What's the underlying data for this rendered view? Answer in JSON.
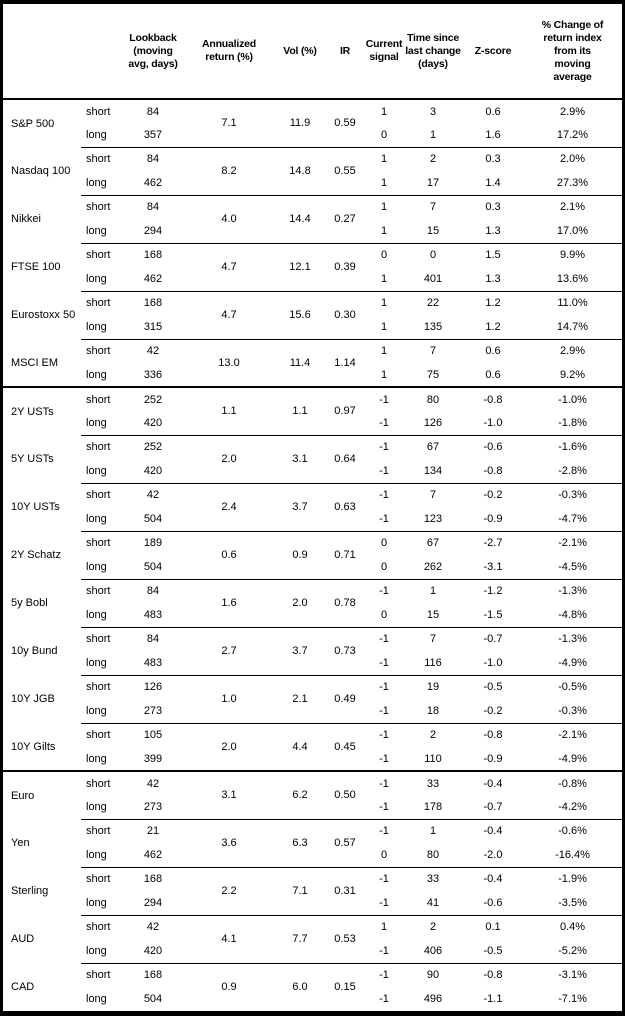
{
  "colors": {
    "background": "#ffffff",
    "text": "#000000",
    "border": "#000000"
  },
  "table": {
    "columns": [
      {
        "id": "asset",
        "label": ""
      },
      {
        "id": "leg",
        "label": ""
      },
      {
        "id": "lookback",
        "label": "Lookback\n(moving\navg, days)"
      },
      {
        "id": "annualized-return",
        "label": "Annualized\nreturn (%)"
      },
      {
        "id": "vol",
        "label": "Vol (%)"
      },
      {
        "id": "ir",
        "label": "IR"
      },
      {
        "id": "current-signal",
        "label": "Current\nsignal"
      },
      {
        "id": "time-since-last-change",
        "label": "Time since\nlast change\n(days)"
      },
      {
        "id": "zscore",
        "label": "Z-score"
      },
      {
        "id": "pct-change",
        "label": "% Change of\nreturn index\nfrom its\nmoving\naverage"
      }
    ],
    "sections": [
      {
        "name": "equity-indices",
        "assets": [
          {
            "name": "S&P 500",
            "annualized_return": "7.1",
            "vol": "11.9",
            "ir": "0.59",
            "rows": [
              {
                "leg": "short",
                "lookback": "84",
                "signal": "1",
                "time_since": "3",
                "zscore": "0.6",
                "pct_change": "2.9%"
              },
              {
                "leg": "long",
                "lookback": "357",
                "signal": "0",
                "time_since": "1",
                "zscore": "1.6",
                "pct_change": "17.2%"
              }
            ]
          },
          {
            "name": "Nasdaq 100",
            "annualized_return": "8.2",
            "vol": "14.8",
            "ir": "0.55",
            "rows": [
              {
                "leg": "short",
                "lookback": "84",
                "signal": "1",
                "time_since": "2",
                "zscore": "0.3",
                "pct_change": "2.0%"
              },
              {
                "leg": "long",
                "lookback": "462",
                "signal": "1",
                "time_since": "17",
                "zscore": "1.4",
                "pct_change": "27.3%"
              }
            ]
          },
          {
            "name": "Nikkei",
            "annualized_return": "4.0",
            "vol": "14.4",
            "ir": "0.27",
            "rows": [
              {
                "leg": "short",
                "lookback": "84",
                "signal": "1",
                "time_since": "7",
                "zscore": "0.3",
                "pct_change": "2.1%"
              },
              {
                "leg": "long",
                "lookback": "294",
                "signal": "1",
                "time_since": "15",
                "zscore": "1.3",
                "pct_change": "17.0%"
              }
            ]
          },
          {
            "name": "FTSE 100",
            "annualized_return": "4.7",
            "vol": "12.1",
            "ir": "0.39",
            "rows": [
              {
                "leg": "short",
                "lookback": "168",
                "signal": "0",
                "time_since": "0",
                "zscore": "1.5",
                "pct_change": "9.9%"
              },
              {
                "leg": "long",
                "lookback": "462",
                "signal": "1",
                "time_since": "401",
                "zscore": "1.3",
                "pct_change": "13.6%"
              }
            ]
          },
          {
            "name": "Eurostoxx 50",
            "annualized_return": "4.7",
            "vol": "15.6",
            "ir": "0.30",
            "rows": [
              {
                "leg": "short",
                "lookback": "168",
                "signal": "1",
                "time_since": "22",
                "zscore": "1.2",
                "pct_change": "11.0%"
              },
              {
                "leg": "long",
                "lookback": "315",
                "signal": "1",
                "time_since": "135",
                "zscore": "1.2",
                "pct_change": "14.7%"
              }
            ]
          },
          {
            "name": "MSCI EM",
            "annualized_return": "13.0",
            "vol": "11.4",
            "ir": "1.14",
            "rows": [
              {
                "leg": "short",
                "lookback": "42",
                "signal": "1",
                "time_since": "7",
                "zscore": "0.6",
                "pct_change": "2.9%"
              },
              {
                "leg": "long",
                "lookback": "336",
                "signal": "1",
                "time_since": "75",
                "zscore": "0.6",
                "pct_change": "9.2%"
              }
            ]
          }
        ]
      },
      {
        "name": "government-bonds",
        "assets": [
          {
            "name": "2Y USTs",
            "annualized_return": "1.1",
            "vol": "1.1",
            "ir": "0.97",
            "rows": [
              {
                "leg": "short",
                "lookback": "252",
                "signal": "-1",
                "time_since": "80",
                "zscore": "-0.8",
                "pct_change": "-1.0%"
              },
              {
                "leg": "long",
                "lookback": "420",
                "signal": "-1",
                "time_since": "126",
                "zscore": "-1.0",
                "pct_change": "-1.8%"
              }
            ]
          },
          {
            "name": "5Y USTs",
            "annualized_return": "2.0",
            "vol": "3.1",
            "ir": "0.64",
            "rows": [
              {
                "leg": "short",
                "lookback": "252",
                "signal": "-1",
                "time_since": "67",
                "zscore": "-0.6",
                "pct_change": "-1.6%"
              },
              {
                "leg": "long",
                "lookback": "420",
                "signal": "-1",
                "time_since": "134",
                "zscore": "-0.8",
                "pct_change": "-2.8%"
              }
            ]
          },
          {
            "name": "10Y USTs",
            "annualized_return": "2.4",
            "vol": "3.7",
            "ir": "0.63",
            "rows": [
              {
                "leg": "short",
                "lookback": "42",
                "signal": "-1",
                "time_since": "7",
                "zscore": "-0.2",
                "pct_change": "-0.3%"
              },
              {
                "leg": "long",
                "lookback": "504",
                "signal": "-1",
                "time_since": "123",
                "zscore": "-0.9",
                "pct_change": "-4.7%"
              }
            ]
          },
          {
            "name": "2Y Schatz",
            "annualized_return": "0.6",
            "vol": "0.9",
            "ir": "0.71",
            "rows": [
              {
                "leg": "short",
                "lookback": "189",
                "signal": "0",
                "time_since": "67",
                "zscore": "-2.7",
                "pct_change": "-2.1%"
              },
              {
                "leg": "long",
                "lookback": "504",
                "signal": "0",
                "time_since": "262",
                "zscore": "-3.1",
                "pct_change": "-4.5%"
              }
            ]
          },
          {
            "name": "5y Bobl",
            "annualized_return": "1.6",
            "vol": "2.0",
            "ir": "0.78",
            "rows": [
              {
                "leg": "short",
                "lookback": "84",
                "signal": "-1",
                "time_since": "1",
                "zscore": "-1.2",
                "pct_change": "-1.3%"
              },
              {
                "leg": "long",
                "lookback": "483",
                "signal": "0",
                "time_since": "15",
                "zscore": "-1.5",
                "pct_change": "-4.8%"
              }
            ]
          },
          {
            "name": "10y Bund",
            "annualized_return": "2.7",
            "vol": "3.7",
            "ir": "0.73",
            "rows": [
              {
                "leg": "short",
                "lookback": "84",
                "signal": "-1",
                "time_since": "7",
                "zscore": "-0.7",
                "pct_change": "-1.3%"
              },
              {
                "leg": "long",
                "lookback": "483",
                "signal": "-1",
                "time_since": "116",
                "zscore": "-1.0",
                "pct_change": "-4.9%"
              }
            ]
          },
          {
            "name": "10Y JGB",
            "annualized_return": "1.0",
            "vol": "2.1",
            "ir": "0.49",
            "rows": [
              {
                "leg": "short",
                "lookback": "126",
                "signal": "-1",
                "time_since": "19",
                "zscore": "-0.5",
                "pct_change": "-0.5%"
              },
              {
                "leg": "long",
                "lookback": "273",
                "signal": "-1",
                "time_since": "18",
                "zscore": "-0.2",
                "pct_change": "-0.3%"
              }
            ]
          },
          {
            "name": "10Y Gilts",
            "annualized_return": "2.0",
            "vol": "4.4",
            "ir": "0.45",
            "rows": [
              {
                "leg": "short",
                "lookback": "105",
                "signal": "-1",
                "time_since": "2",
                "zscore": "-0.8",
                "pct_change": "-2.1%"
              },
              {
                "leg": "long",
                "lookback": "399",
                "signal": "-1",
                "time_since": "110",
                "zscore": "-0.9",
                "pct_change": "-4.9%"
              }
            ]
          }
        ]
      },
      {
        "name": "currencies",
        "assets": [
          {
            "name": "Euro",
            "annualized_return": "3.1",
            "vol": "6.2",
            "ir": "0.50",
            "rows": [
              {
                "leg": "short",
                "lookback": "42",
                "signal": "-1",
                "time_since": "33",
                "zscore": "-0.4",
                "pct_change": "-0.8%"
              },
              {
                "leg": "long",
                "lookback": "273",
                "signal": "-1",
                "time_since": "178",
                "zscore": "-0.7",
                "pct_change": "-4.2%"
              }
            ]
          },
          {
            "name": "Yen",
            "annualized_return": "3.6",
            "vol": "6.3",
            "ir": "0.57",
            "rows": [
              {
                "leg": "short",
                "lookback": "21",
                "signal": "-1",
                "time_since": "1",
                "zscore": "-0.4",
                "pct_change": "-0.6%"
              },
              {
                "leg": "long",
                "lookback": "462",
                "signal": "0",
                "time_since": "80",
                "zscore": "-2.0",
                "pct_change": "-16.4%"
              }
            ]
          },
          {
            "name": "Sterling",
            "annualized_return": "2.2",
            "vol": "7.1",
            "ir": "0.31",
            "rows": [
              {
                "leg": "short",
                "lookback": "168",
                "signal": "-1",
                "time_since": "33",
                "zscore": "-0.4",
                "pct_change": "-1.9%"
              },
              {
                "leg": "long",
                "lookback": "294",
                "signal": "-1",
                "time_since": "41",
                "zscore": "-0.6",
                "pct_change": "-3.5%"
              }
            ]
          },
          {
            "name": "AUD",
            "annualized_return": "4.1",
            "vol": "7.7",
            "ir": "0.53",
            "rows": [
              {
                "leg": "short",
                "lookback": "42",
                "signal": "1",
                "time_since": "2",
                "zscore": "0.1",
                "pct_change": "0.4%"
              },
              {
                "leg": "long",
                "lookback": "420",
                "signal": "-1",
                "time_since": "406",
                "zscore": "-0.5",
                "pct_change": "-5.2%"
              }
            ]
          },
          {
            "name": "CAD",
            "annualized_return": "0.9",
            "vol": "6.0",
            "ir": "0.15",
            "rows": [
              {
                "leg": "short",
                "lookback": "168",
                "signal": "-1",
                "time_since": "90",
                "zscore": "-0.8",
                "pct_change": "-3.1%"
              },
              {
                "leg": "long",
                "lookback": "504",
                "signal": "-1",
                "time_since": "496",
                "zscore": "-1.1",
                "pct_change": "-7.1%"
              }
            ]
          }
        ]
      }
    ]
  }
}
